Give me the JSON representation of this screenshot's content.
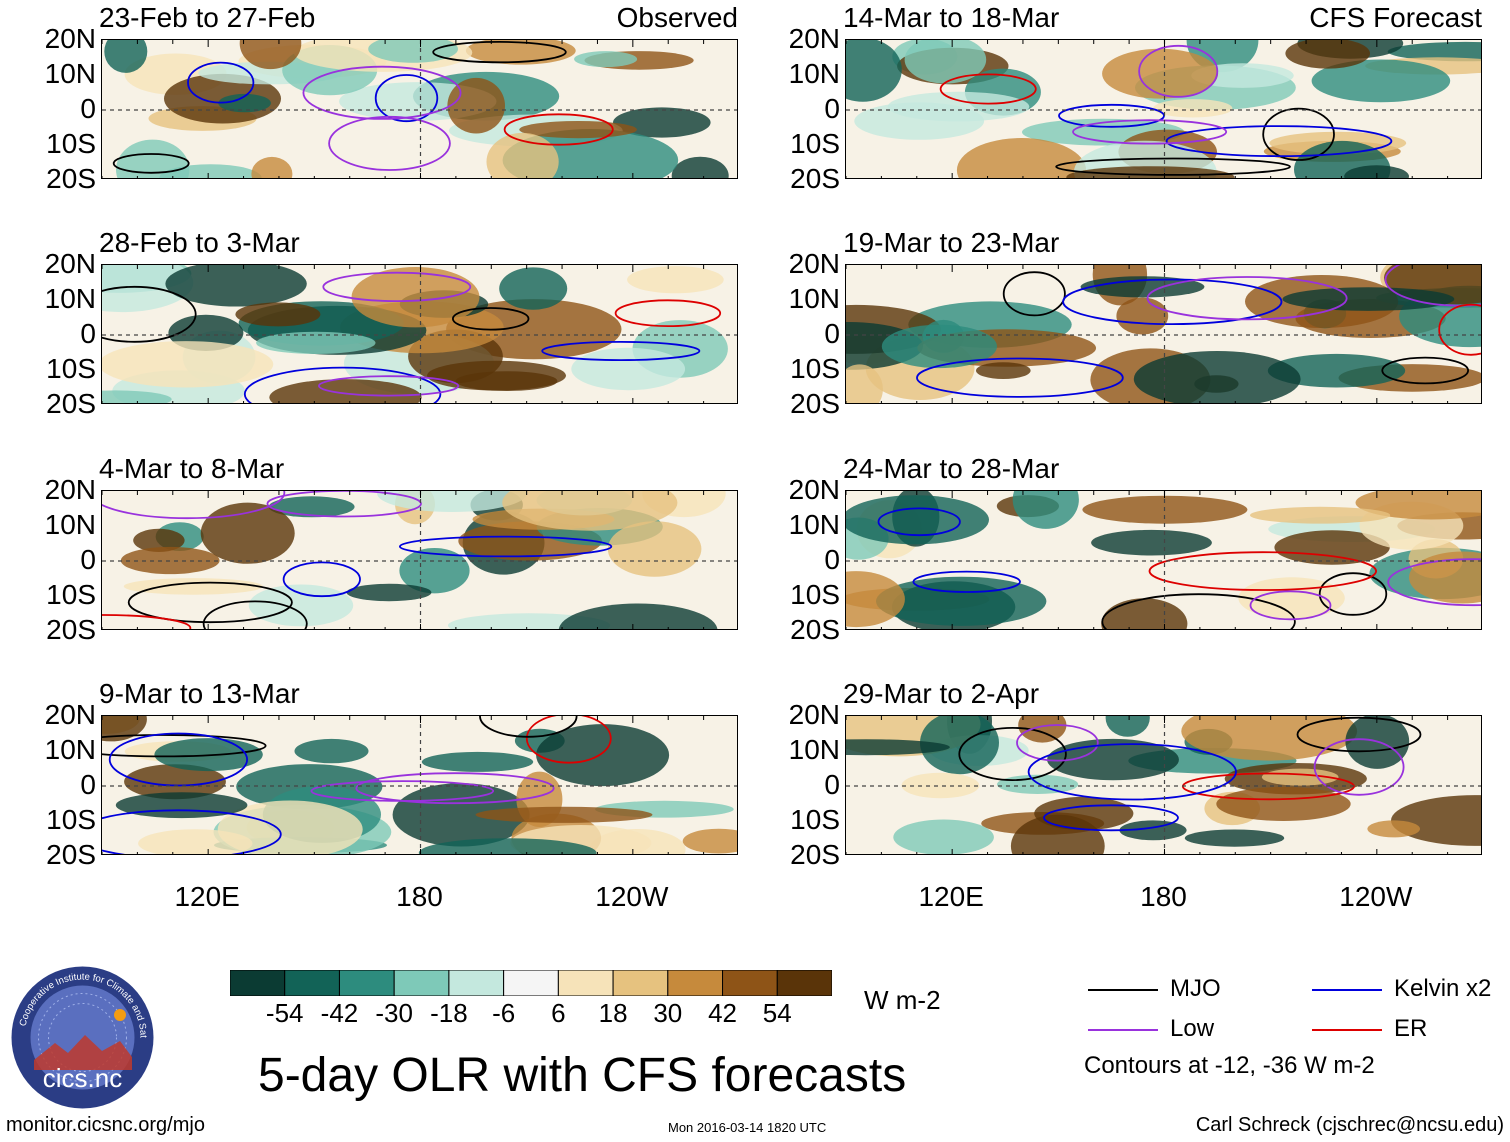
{
  "panels": [
    {
      "title": "23-Feb to 27-Feb",
      "tag": "Observed"
    },
    {
      "title": "28-Feb to 3-Mar",
      "tag": ""
    },
    {
      "title": "4-Mar to 8-Mar",
      "tag": ""
    },
    {
      "title": "9-Mar to 13-Mar",
      "tag": ""
    },
    {
      "title": "14-Mar to 18-Mar",
      "tag": "CFS Forecast"
    },
    {
      "title": "19-Mar to 23-Mar",
      "tag": ""
    },
    {
      "title": "24-Mar to 28-Mar",
      "tag": ""
    },
    {
      "title": "29-Mar to 2-Apr",
      "tag": ""
    }
  ],
  "chart_data": {
    "type": "heatmap",
    "title": "5-day OLR with CFS forecasts",
    "latitude_ticks": [
      "20N",
      "10N",
      "0",
      "10S",
      "20S"
    ],
    "longitude_ticks": [
      "120E",
      "180",
      "120W"
    ],
    "lat_range": [
      -20,
      20
    ],
    "lon_range": [
      90,
      270
    ],
    "units": "W m-2",
    "colorbar": {
      "levels": [
        "-54",
        "-42",
        "-30",
        "-18",
        "-6",
        "6",
        "18",
        "30",
        "42",
        "54"
      ],
      "colors": [
        "#0b3b33",
        "#126357",
        "#2d8c7e",
        "#7ec9b8",
        "#c4e8de",
        "#f5f5f5",
        "#f6e3b9",
        "#e6c27f",
        "#c68a3c",
        "#8e5417",
        "#5a3409"
      ]
    },
    "legend": [
      {
        "label": "MJO",
        "color": "#000000"
      },
      {
        "label": "Kelvin x2",
        "color": "#0000dd"
      },
      {
        "label": "Low",
        "color": "#9932dd"
      },
      {
        "label": "ER",
        "color": "#dd0000"
      }
    ],
    "contour_note": "Contours at -12, -36 W m-2"
  },
  "footer": {
    "logo_text": "cics.nc",
    "logo_ring_text": "Cooperative Institute for Climate and Satellites",
    "url": "monitor.cicsnc.org/mjo",
    "timestamp": "Mon 2016-03-14 1820 UTC",
    "author": "Carl Schreck (cjschrec@ncsu.edu)"
  }
}
